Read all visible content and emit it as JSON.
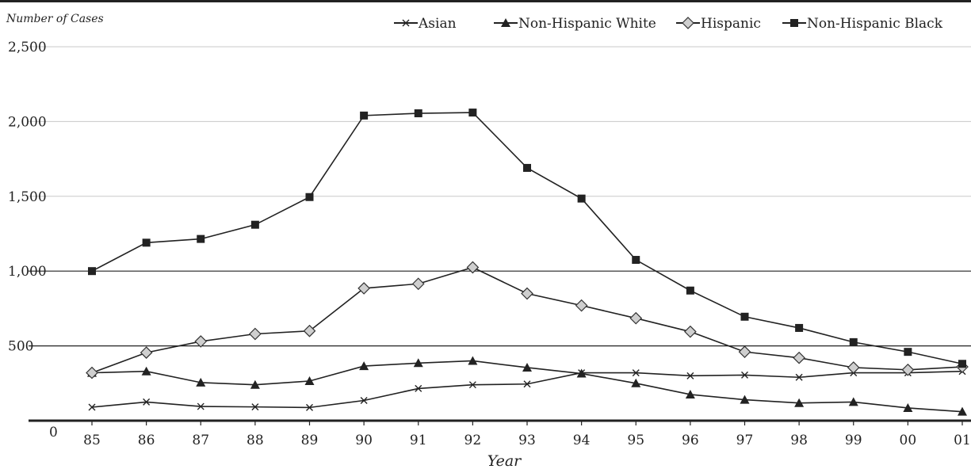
{
  "chart_data": {
    "type": "line",
    "ylabel": "Number of Cases",
    "xlabel": "Year",
    "categories": [
      "85",
      "86",
      "87",
      "88",
      "89",
      "90",
      "91",
      "92",
      "93",
      "94",
      "95",
      "96",
      "97",
      "98",
      "99",
      "00",
      "01"
    ],
    "y_ticks": [
      "0",
      "500",
      "1,000",
      "1,500",
      "2,000",
      "2,500"
    ],
    "ylim": [
      0,
      2500
    ],
    "legend_position": "top-right",
    "series": [
      {
        "name": "Asian",
        "marker": "x",
        "values": [
          90,
          125,
          95,
          92,
          88,
          135,
          215,
          240,
          245,
          320,
          320,
          300,
          305,
          290,
          320,
          320,
          330
        ]
      },
      {
        "name": "Non-Hispanic White",
        "marker": "triangle",
        "values": [
          320,
          330,
          255,
          240,
          265,
          365,
          385,
          400,
          355,
          315,
          250,
          175,
          140,
          118,
          125,
          85,
          60
        ]
      },
      {
        "name": "Hispanic",
        "marker": "diamond",
        "values": [
          320,
          455,
          530,
          580,
          600,
          885,
          915,
          1025,
          850,
          770,
          685,
          595,
          460,
          420,
          355,
          340,
          360
        ]
      },
      {
        "name": "Non-Hispanic Black",
        "marker": "square",
        "values": [
          1000,
          1190,
          1215,
          1310,
          1495,
          2040,
          2055,
          2060,
          1690,
          1485,
          1075,
          870,
          695,
          620,
          525,
          460,
          380
        ]
      }
    ]
  }
}
